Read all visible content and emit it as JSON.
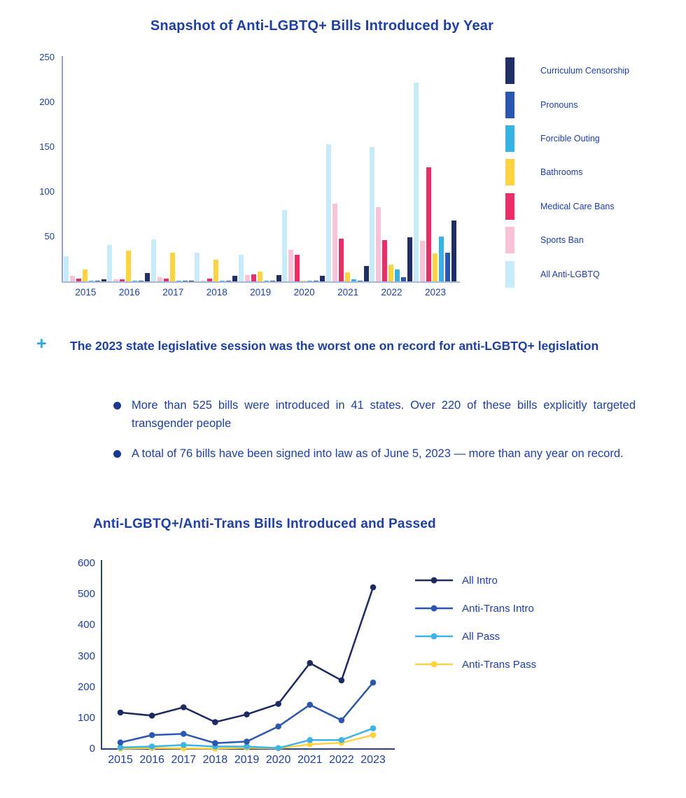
{
  "colors": {
    "text-blue": "#1c3fa8",
    "axis-light": "#8fa4d6",
    "baseline-light": "#aab6de",
    "axis-dark": "#2b3f8e",
    "plus-blue": "#2da9e1",
    "bullet-blue": "#1b3a8f"
  },
  "chart_data": [
    {
      "type": "bar",
      "title": "Snapshot of Anti-LGBTQ+ Bills Introduced by Year",
      "categories": [
        "2015",
        "2016",
        "2017",
        "2018",
        "2019",
        "2020",
        "2021",
        "2022",
        "2023"
      ],
      "xlabel": "",
      "ylabel": "",
      "ylim": [
        0,
        250
      ],
      "y_ticks": [
        50,
        100,
        150,
        200,
        250
      ],
      "grid": false,
      "legend_position": "right",
      "series": [
        {
          "name": "Curriculum Censorship",
          "color": "#1f2f66",
          "values": [
            2,
            9,
            1,
            6,
            7,
            6,
            17,
            49,
            68
          ]
        },
        {
          "name": "Pronouns",
          "color": "#2a57b0",
          "values": [
            1,
            1,
            1,
            1,
            1,
            1,
            1,
            5,
            32
          ]
        },
        {
          "name": "Forcible Outing",
          "color": "#35b4e4",
          "values": [
            1,
            1,
            1,
            1,
            1,
            1,
            2,
            13,
            50
          ]
        },
        {
          "name": "Bathrooms",
          "color": "#ffd23f",
          "values": [
            13,
            34,
            32,
            24,
            11,
            1,
            10,
            19,
            31
          ]
        },
        {
          "name": "Medical Care Bans",
          "color": "#e92e68",
          "values": [
            3,
            2,
            3,
            3,
            8,
            30,
            48,
            46,
            127
          ]
        },
        {
          "name": "Sports Ban",
          "color": "#f9c2d6",
          "values": [
            6,
            2,
            5,
            1,
            7,
            35,
            87,
            83,
            45
          ]
        },
        {
          "name": "All Anti-LGBTQ",
          "color": "#c6ecfb",
          "values": [
            28,
            41,
            47,
            32,
            30,
            80,
            153,
            150,
            222
          ]
        }
      ]
    },
    {
      "type": "line",
      "title": "Anti-LGBTQ+/Anti-Trans Bills Introduced and Passed",
      "categories": [
        "2015",
        "2016",
        "2017",
        "2018",
        "2019",
        "2020",
        "2021",
        "2022",
        "2023"
      ],
      "xlabel": "",
      "ylabel": "",
      "ylim": [
        0,
        600
      ],
      "y_ticks": [
        0,
        100,
        200,
        300,
        400,
        500,
        600
      ],
      "grid": false,
      "legend_position": "right",
      "series": [
        {
          "name": "All Intro",
          "color": "#1b2a63",
          "values": [
            118,
            108,
            135,
            87,
            112,
            146,
            278,
            222,
            523
          ]
        },
        {
          "name": "Anti-Trans Intro",
          "color": "#2a57b0",
          "values": [
            21,
            45,
            49,
            19,
            24,
            73,
            143,
            93,
            215
          ]
        },
        {
          "name": "All Pass",
          "color": "#3cb4e5",
          "values": [
            5,
            8,
            13,
            8,
            8,
            3,
            29,
            29,
            67
          ]
        },
        {
          "name": "Anti-Trans Pass",
          "color": "#ffd23f",
          "values": [
            1,
            3,
            2,
            1,
            4,
            2,
            15,
            20,
            45
          ]
        }
      ]
    }
  ],
  "callout": {
    "bullet_icon": "+",
    "heading": "The 2023 state legislative session was the worst one on record for anti-LGBTQ+ legislation",
    "bullets": [
      "More than 525 bills were introduced in 41 states. Over 220 of these bills explicitly targeted transgender people",
      "A total of 76 bills have been signed into law as of June 5, 2023 — more than any year on record."
    ]
  }
}
